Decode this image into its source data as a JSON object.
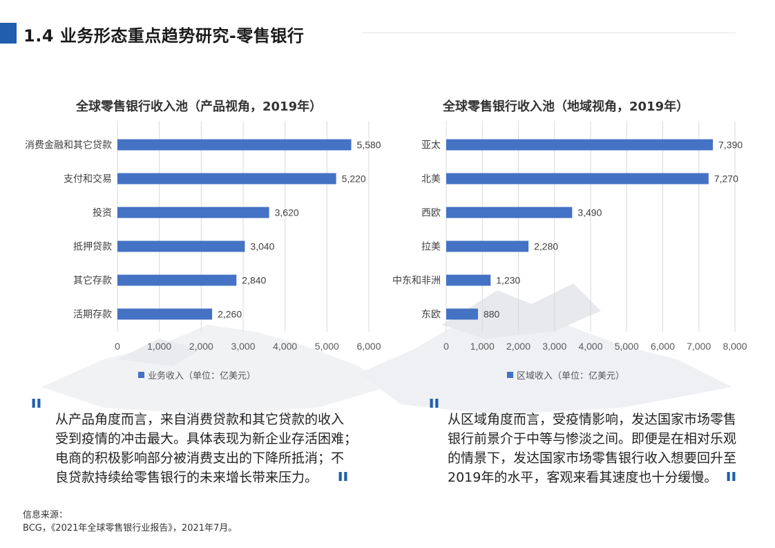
{
  "header": {
    "title": "1.4 业务形态重点趋势研究-零售银行"
  },
  "chart_data": [
    {
      "type": "bar",
      "orientation": "horizontal",
      "title": "全球零售银行收入池（产品视角，2019年）",
      "categories": [
        "消费金融和其它贷款",
        "支付和交易",
        "投资",
        "抵押贷款",
        "其它存款",
        "活期存款"
      ],
      "series": [
        {
          "name": "业务收入（单位：亿美元）",
          "values": [
            5580,
            5220,
            3620,
            3040,
            2840,
            2260
          ]
        }
      ],
      "value_labels": [
        "5,580",
        "5,220",
        "3,620",
        "3,040",
        "2,840",
        "2,260"
      ],
      "xlim": [
        0,
        6000
      ],
      "xticks": [
        0,
        1000,
        2000,
        3000,
        4000,
        5000,
        6000
      ],
      "xtick_labels": [
        "0",
        "1,000",
        "2,000",
        "3,000",
        "4,000",
        "5,000",
        "6,000"
      ],
      "grid": true,
      "legend_position": "bottom",
      "bar_color": "#4472c4"
    },
    {
      "type": "bar",
      "orientation": "horizontal",
      "title": "全球零售银行收入池（地域视角，2019年）",
      "categories": [
        "亚太",
        "北美",
        "西欧",
        "拉美",
        "中东和非洲",
        "东欧"
      ],
      "series": [
        {
          "name": "区域收入（单位：亿美元）",
          "values": [
            7390,
            7270,
            3490,
            2280,
            1230,
            880
          ]
        }
      ],
      "value_labels": [
        "7,390",
        "7,270",
        "3,490",
        "2,280",
        "1,230",
        "880"
      ],
      "xlim": [
        0,
        8000
      ],
      "xticks": [
        0,
        1000,
        2000,
        3000,
        4000,
        5000,
        6000,
        7000,
        8000
      ],
      "xtick_labels": [
        "0",
        "1,000",
        "2,000",
        "3,000",
        "4,000",
        "5,000",
        "6,000",
        "7,000",
        "8,000"
      ],
      "grid": true,
      "legend_position": "bottom",
      "bar_color": "#4472c4"
    }
  ],
  "quotes": {
    "left": {
      "lines": [
        "从产品角度而言，来自消费贷款和其它贷款的收入",
        "受到疫情的冲击最大。具体表现为新企业存活困难；",
        "电商的积极影响部分被消费支出的下降所抵消；不",
        "良贷款持续给零售银行的未来增长带来压力。"
      ]
    },
    "right": {
      "lines": [
        "从区域角度而言，受疫情影响，发达国家市场零售",
        "银行前景介于中等与惨淡之间。即便是在相对乐观",
        "的情景下，发达国家市场零售银行收入想要回升至",
        "2019年的水平，客观来看其速度也十分缓慢。"
      ]
    }
  },
  "source": {
    "label": "信息来源：",
    "text": "BCG，《2021年全球零售银行业报告》，2021年7月。"
  },
  "colors": {
    "accent": "#1f5fae",
    "bar": "#4472c4"
  }
}
